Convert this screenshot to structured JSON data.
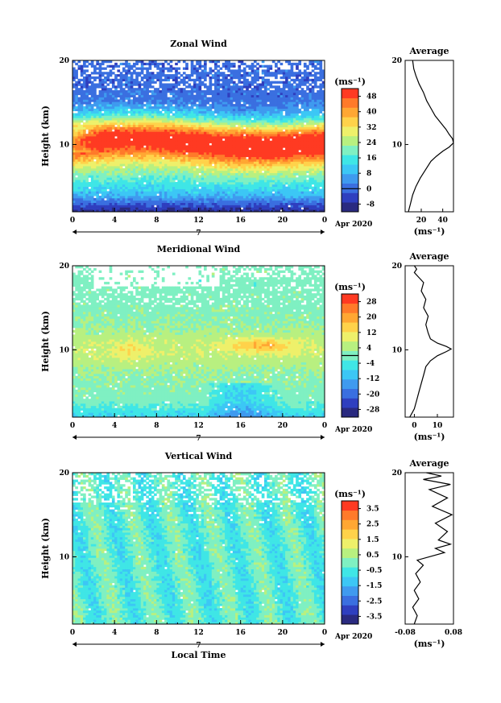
{
  "chart_data": [
    {
      "type": "heatmap",
      "title": "Zonal Wind",
      "ylabel": "Height (km)",
      "y_ticks": [
        "20",
        "10"
      ],
      "ylim": [
        2,
        20
      ],
      "x_ticks": [
        "0",
        "4",
        "8",
        "12",
        "16",
        "20",
        "0"
      ],
      "xlim": [
        0,
        24
      ],
      "date_marker": "7",
      "date_label": "Apr 2020",
      "colorbar": {
        "label": "(ms⁻¹)",
        "ticks": [
          "48",
          "40",
          "32",
          "24",
          "16",
          "8",
          "0",
          "-8"
        ],
        "range": [
          -12,
          52
        ],
        "zero_line": 0
      },
      "average": {
        "title": "Average",
        "xlabel": "(ms⁻¹)",
        "x_ticks": [
          "20",
          "40"
        ],
        "xlim": [
          5,
          50
        ],
        "y_ticks": [
          "20",
          "10"
        ],
        "profile": [
          [
            8,
            2
          ],
          [
            10,
            3
          ],
          [
            12,
            4
          ],
          [
            15,
            5
          ],
          [
            19,
            6
          ],
          [
            24,
            7
          ],
          [
            29,
            8
          ],
          [
            34,
            8.6
          ],
          [
            40,
            9.2
          ],
          [
            46,
            9.7
          ],
          [
            50,
            10.2
          ],
          [
            49,
            10.7
          ],
          [
            46,
            11.2
          ],
          [
            43,
            11.8
          ],
          [
            38,
            12.6
          ],
          [
            33,
            13.4
          ],
          [
            29,
            14.3
          ],
          [
            25,
            15.2
          ],
          [
            22,
            16.2
          ],
          [
            18,
            17.2
          ],
          [
            15,
            18.2
          ],
          [
            13,
            19
          ],
          [
            12,
            20
          ]
        ]
      }
    },
    {
      "type": "heatmap",
      "title": "Meridional Wind",
      "ylabel": "Height (km)",
      "y_ticks": [
        "20",
        "10"
      ],
      "ylim": [
        2,
        20
      ],
      "x_ticks": [
        "0",
        "4",
        "8",
        "12",
        "16",
        "20",
        "0"
      ],
      "xlim": [
        0,
        24
      ],
      "date_marker": "7",
      "date_label": "Apr 2020",
      "colorbar": {
        "label": "(ms⁻¹)",
        "ticks": [
          "28",
          "20",
          "12",
          "4",
          "-4",
          "-12",
          "-20",
          "-28"
        ],
        "range": [
          -32,
          32
        ],
        "zero_line": 0
      },
      "average": {
        "title": "Average",
        "xlabel": "(ms⁻¹)",
        "x_ticks": [
          "0",
          "10"
        ],
        "xlim": [
          -4,
          17
        ],
        "y_ticks": [
          "20",
          "10"
        ],
        "profile": [
          [
            -2,
            2
          ],
          [
            -1,
            2.5
          ],
          [
            0,
            3
          ],
          [
            1,
            4
          ],
          [
            2,
            5
          ],
          [
            3,
            6
          ],
          [
            4,
            7
          ],
          [
            5,
            8
          ],
          [
            7,
            8.7
          ],
          [
            10,
            9.3
          ],
          [
            14,
            9.8
          ],
          [
            16,
            10.1
          ],
          [
            14,
            10.4
          ],
          [
            10,
            10.8
          ],
          [
            7,
            11.3
          ],
          [
            6,
            12
          ],
          [
            5,
            13
          ],
          [
            6,
            14
          ],
          [
            4,
            15
          ],
          [
            5,
            16
          ],
          [
            3,
            17
          ],
          [
            4,
            18
          ],
          [
            2,
            18.6
          ],
          [
            0,
            19.2
          ],
          [
            1,
            19.6
          ],
          [
            0,
            20
          ]
        ]
      }
    },
    {
      "type": "heatmap",
      "title": "Vertical Wind",
      "ylabel": "Height (km)",
      "y_ticks": [
        "20",
        "10"
      ],
      "ylim": [
        2,
        20
      ],
      "x_ticks": [
        "0",
        "4",
        "8",
        "12",
        "16",
        "20",
        "0"
      ],
      "xlim": [
        0,
        24
      ],
      "xlabel": "Local Time",
      "date_marker": "7",
      "date_label": "Apr 2020",
      "colorbar": {
        "label": "(ms⁻¹)",
        "ticks": [
          "3.5",
          "2.5",
          "1.5",
          "0.5",
          "-0.5",
          "-1.5",
          "-2.5",
          "-3.5"
        ],
        "range": [
          -4,
          4
        ],
        "zero_line": null
      },
      "average": {
        "title": "Average",
        "xlabel": "(ms⁻¹)",
        "x_ticks": [
          "-0.08",
          "0.08"
        ],
        "xlim": [
          -0.08,
          0.08
        ],
        "y_ticks": [
          "20",
          "10"
        ],
        "profile": [
          [
            -0.05,
            2
          ],
          [
            -0.04,
            3
          ],
          [
            -0.055,
            4
          ],
          [
            -0.035,
            5
          ],
          [
            -0.05,
            6
          ],
          [
            -0.03,
            7
          ],
          [
            -0.045,
            8
          ],
          [
            -0.02,
            9
          ],
          [
            -0.04,
            9.6
          ],
          [
            0.0,
            10
          ],
          [
            0.05,
            10.5
          ],
          [
            0.02,
            11
          ],
          [
            0.07,
            11.5
          ],
          [
            0.03,
            12
          ],
          [
            0.06,
            13
          ],
          [
            0.02,
            14
          ],
          [
            0.075,
            15
          ],
          [
            0.01,
            16
          ],
          [
            0.06,
            17
          ],
          [
            0.0,
            18
          ],
          [
            0.07,
            18.6
          ],
          [
            -0.02,
            19.2
          ],
          [
            0.04,
            19.6
          ],
          [
            -0.01,
            20
          ]
        ]
      }
    }
  ],
  "colors": {
    "colormap": [
      "#2a2a80",
      "#2f3fbf",
      "#3a6fe0",
      "#3f9aef",
      "#3cc7f5",
      "#3fe6e6",
      "#7ff0c2",
      "#b8f080",
      "#eef06a",
      "#ffd24a",
      "#ffa733",
      "#ff7a2a",
      "#ff3a22"
    ],
    "missing": "#ffffff",
    "axes": "#000000"
  }
}
